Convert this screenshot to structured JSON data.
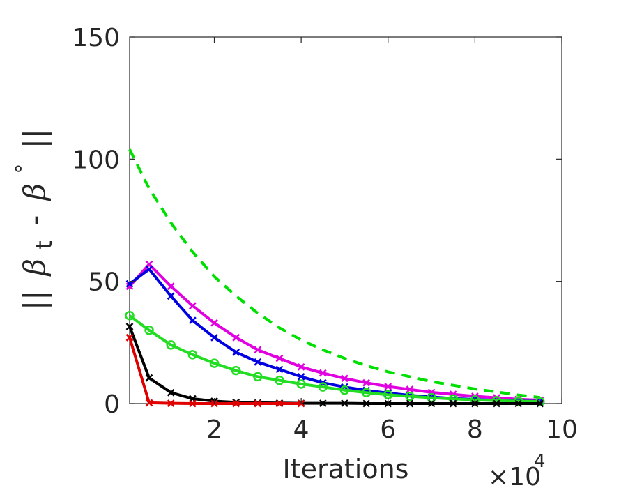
{
  "chart_data": {
    "type": "line",
    "xlabel": "Iterations",
    "x_multiplier_text": "×10",
    "x_multiplier_exp": "4",
    "ylabel": {
      "bars_left": "||",
      "beta": "β",
      "sub_t": "t",
      "minus": "-",
      "beta2": "β",
      "sup_circ": "°",
      "bars_right": "||"
    },
    "xlim": [
      0.05,
      10
    ],
    "ylim": [
      0,
      150
    ],
    "x_ticks": [
      2,
      4,
      6,
      8,
      10
    ],
    "y_ticks": [
      0,
      50,
      100,
      150
    ],
    "grid": false,
    "series": [
      {
        "color": "#00e000",
        "style": "dashed",
        "marker": "none",
        "x": [
          0.05,
          0.5,
          1,
          1.5,
          2,
          2.5,
          3,
          3.5,
          4,
          4.5,
          5,
          5.5,
          6,
          6.5,
          7,
          7.5,
          8,
          8.5,
          9,
          9.5
        ],
        "values": [
          104,
          88,
          74,
          62,
          52,
          44,
          37,
          31,
          26,
          22,
          18.5,
          15.5,
          13,
          11,
          9,
          7.5,
          6,
          4.8,
          3.5,
          2.5
        ]
      },
      {
        "color": "#e000e0",
        "style": "solid",
        "marker": "x",
        "x": [
          0.05,
          0.5,
          1,
          1.5,
          2,
          2.5,
          3,
          3.5,
          4,
          4.5,
          5,
          5.5,
          6,
          6.5,
          7,
          7.5,
          8,
          8.5,
          9,
          9.5
        ],
        "values": [
          48,
          57,
          48,
          40,
          33,
          27,
          22,
          18.5,
          15,
          12.5,
          10.3,
          8.5,
          7,
          5.8,
          4.6,
          3.8,
          3,
          2.4,
          1.8,
          1.4
        ]
      },
      {
        "color": "#0000e0",
        "style": "solid",
        "marker": "x",
        "x": [
          0.05,
          0.5,
          1,
          1.5,
          2,
          2.5,
          3,
          3.5,
          4,
          4.5,
          5,
          5.5,
          6,
          6.5,
          7,
          7.5,
          8,
          8.5,
          9,
          9.5
        ],
        "values": [
          49,
          55,
          44,
          34,
          27,
          21,
          17,
          14,
          11,
          8.5,
          6.8,
          5.4,
          4.3,
          3.4,
          2.7,
          2.1,
          1.7,
          1.3,
          1.1,
          0.9
        ]
      },
      {
        "color": "#22dd22",
        "style": "solid",
        "marker": "o",
        "x": [
          0.05,
          0.5,
          1,
          1.5,
          2,
          2.5,
          3,
          3.5,
          4,
          4.5,
          5,
          5.5,
          6,
          6.5,
          7,
          7.5,
          8,
          8.5,
          9,
          9.5
        ],
        "values": [
          36,
          30,
          24,
          20,
          16.5,
          13.5,
          11,
          9.5,
          8,
          6.8,
          5.5,
          4.5,
          3.6,
          3,
          2.4,
          1.9,
          1.5,
          1.2,
          1,
          0.8
        ]
      },
      {
        "color": "#000000",
        "style": "solid",
        "marker": "x",
        "x": [
          0.05,
          0.5,
          1,
          1.5,
          2,
          2.5,
          3,
          3.5,
          4,
          4.5,
          5,
          5.5,
          6,
          6.5,
          7,
          7.5,
          8,
          8.5,
          9,
          9.5
        ],
        "values": [
          31.5,
          10.5,
          4.5,
          2,
          1,
          0.5,
          0.3,
          0.2,
          0.1,
          0.1,
          0.1,
          0,
          0,
          0,
          0,
          0,
          0,
          0,
          0,
          0
        ]
      },
      {
        "color": "#e00000",
        "style": "solid",
        "marker": "x",
        "x": [
          0.05,
          0.5,
          1,
          1.5,
          2,
          2.5,
          3,
          3.5,
          4
        ],
        "values": [
          27,
          0.3,
          0.1,
          0,
          0,
          0,
          0,
          0,
          0
        ]
      }
    ]
  }
}
